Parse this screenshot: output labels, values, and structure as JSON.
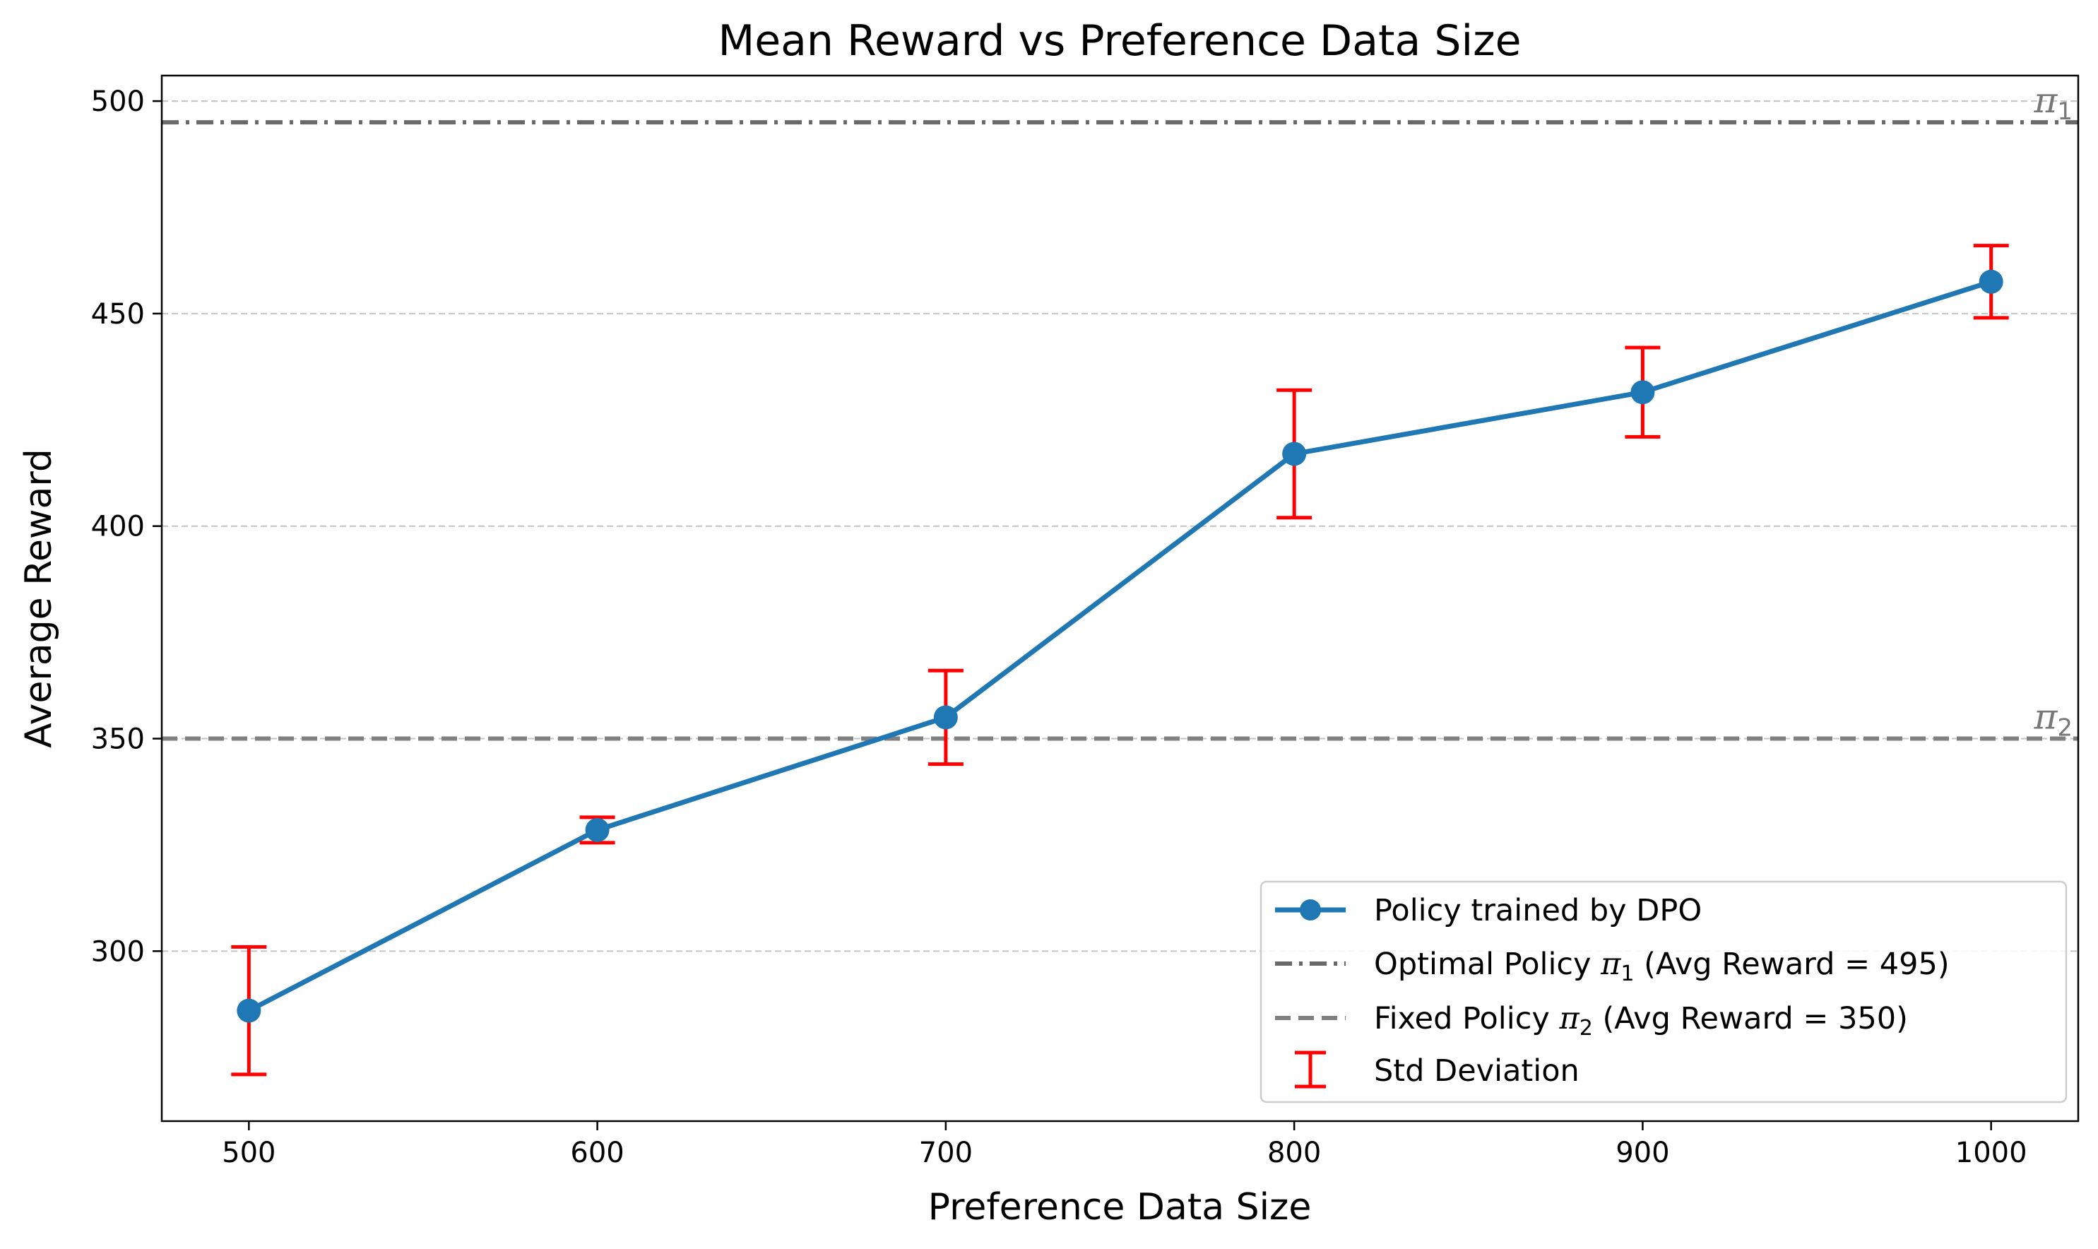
{
  "chart_data": {
    "type": "line",
    "title": "Mean Reward vs Preference Data Size",
    "xlabel": "Preference Data Size",
    "ylabel": "Average Reward",
    "xlim": [
      475,
      1025
    ],
    "ylim": [
      260,
      506
    ],
    "xticks": [
      500,
      600,
      700,
      800,
      900,
      1000
    ],
    "yticks": [
      300,
      350,
      400,
      450,
      500
    ],
    "grid": "horizontal dashed",
    "legend_position": "lower right",
    "series": [
      {
        "name": "Policy trained by DPO",
        "color": "#1f77b4",
        "marker": "circle",
        "x": [
          500,
          600,
          700,
          800,
          900,
          1000
        ],
        "y": [
          286,
          328.5,
          355,
          417,
          431.5,
          457.5
        ],
        "std": [
          15,
          3,
          11,
          15,
          10.5,
          8.5
        ]
      }
    ],
    "reference_lines": [
      {
        "key": "pi1",
        "label_symbol": "π",
        "label_sub": "1",
        "legend_pre": "Optimal Policy ",
        "legend_post": " (Avg Reward = 495)",
        "y": 495,
        "style": "dashdot",
        "color": "#696969"
      },
      {
        "key": "pi2",
        "label_symbol": "π",
        "label_sub": "2",
        "legend_pre": "Fixed Policy ",
        "legend_post": " (Avg Reward = 350)",
        "y": 350,
        "style": "dashed",
        "color": "#808080"
      }
    ],
    "error_bar": {
      "name": "Std Deviation",
      "color": "#ff0000"
    }
  }
}
